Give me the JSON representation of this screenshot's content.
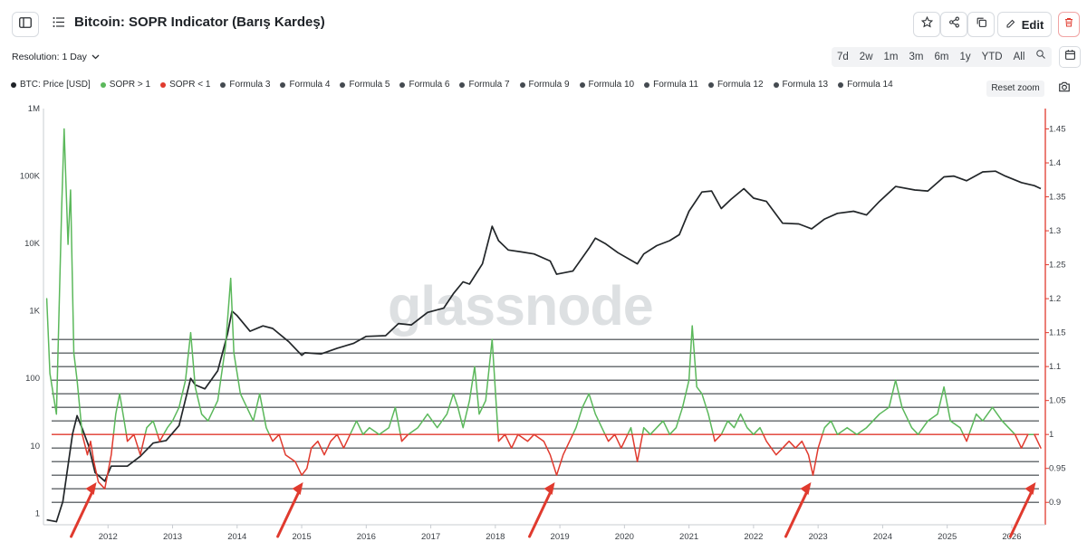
{
  "header": {
    "title": "Bitcoin: SOPR Indicator (Barış Kardeş)",
    "edit_label": "Edit"
  },
  "toolbar": {
    "resolution_label": "Resolution: 1 Day",
    "ranges": [
      "7d",
      "2w",
      "1m",
      "3m",
      "6m",
      "1y",
      "YTD",
      "All"
    ],
    "reset_zoom_label": "Reset zoom"
  },
  "legend": [
    {
      "label": "BTC: Price [USD]",
      "color": "#1f2328"
    },
    {
      "label": "SOPR > 1",
      "color": "#5bb85b"
    },
    {
      "label": "SOPR < 1",
      "color": "#e03a2e"
    },
    {
      "label": "Formula 3",
      "color": "#444a50"
    },
    {
      "label": "Formula 4",
      "color": "#444a50"
    },
    {
      "label": "Formula 5",
      "color": "#444a50"
    },
    {
      "label": "Formula 6",
      "color": "#444a50"
    },
    {
      "label": "Formula 7",
      "color": "#444a50"
    },
    {
      "label": "Formula 9",
      "color": "#444a50"
    },
    {
      "label": "Formula 10",
      "color": "#444a50"
    },
    {
      "label": "Formula 11",
      "color": "#444a50"
    },
    {
      "label": "Formula 12",
      "color": "#444a50"
    },
    {
      "label": "Formula 13",
      "color": "#444a50"
    },
    {
      "label": "Formula 14",
      "color": "#444a50"
    }
  ],
  "watermark": "glassnode",
  "colors": {
    "accent_green": "#5bb85b",
    "accent_red": "#e03a2e",
    "price": "#222629",
    "arrow": "#e03a2e"
  },
  "chart_data": {
    "type": "line",
    "x_ticks": [
      "2012",
      "2013",
      "2014",
      "2015",
      "2016",
      "2017",
      "2018",
      "2019",
      "2020",
      "2021",
      "2022",
      "2023",
      "2024",
      "2025",
      "2026"
    ],
    "y_left": {
      "scale": "log",
      "ticks": [
        "1M",
        "100K",
        "10K",
        "1K",
        "100",
        "10",
        "1"
      ],
      "values": [
        1000000,
        100000,
        10000,
        1000,
        100,
        10,
        1
      ],
      "label": ""
    },
    "y_right": {
      "scale": "linear",
      "ticks": [
        "1.45",
        "1.4",
        "1.35",
        "1.3",
        "1.25",
        "1.2",
        "1.15",
        "1.1",
        "1.05",
        "1",
        "0.95",
        "0.9"
      ],
      "values": [
        1.45,
        1.4,
        1.35,
        1.3,
        1.25,
        1.2,
        1.15,
        1.1,
        1.05,
        1,
        0.95,
        0.9
      ],
      "label": ""
    },
    "horizontal_levels": [
      1.14,
      1.12,
      1.1,
      1.08,
      1.06,
      1.04,
      1.02,
      1.0,
      0.98,
      0.96,
      0.94,
      0.92,
      0.9
    ],
    "threshold": 1.0,
    "series": [
      {
        "name": "BTC: Price [USD]",
        "axis": "left",
        "points": [
          [
            2011.05,
            0.8
          ],
          [
            2011.2,
            0.75
          ],
          [
            2011.3,
            1.5
          ],
          [
            2011.45,
            15
          ],
          [
            2011.52,
            28
          ],
          [
            2011.6,
            18
          ],
          [
            2011.7,
            10
          ],
          [
            2011.8,
            4
          ],
          [
            2011.95,
            3
          ],
          [
            2012.05,
            5
          ],
          [
            2012.3,
            5
          ],
          [
            2012.5,
            7
          ],
          [
            2012.7,
            11
          ],
          [
            2012.9,
            12
          ],
          [
            2013.1,
            20
          ],
          [
            2013.28,
            100
          ],
          [
            2013.35,
            80
          ],
          [
            2013.5,
            70
          ],
          [
            2013.7,
            130
          ],
          [
            2013.85,
            450
          ],
          [
            2013.92,
            1000
          ],
          [
            2014.0,
            850
          ],
          [
            2014.2,
            500
          ],
          [
            2014.4,
            600
          ],
          [
            2014.55,
            550
          ],
          [
            2014.8,
            350
          ],
          [
            2015.0,
            220
          ],
          [
            2015.05,
            240
          ],
          [
            2015.3,
            230
          ],
          [
            2015.55,
            280
          ],
          [
            2015.8,
            330
          ],
          [
            2016.0,
            420
          ],
          [
            2016.3,
            430
          ],
          [
            2016.5,
            650
          ],
          [
            2016.7,
            620
          ],
          [
            2016.95,
            950
          ],
          [
            2017.2,
            1100
          ],
          [
            2017.35,
            1800
          ],
          [
            2017.5,
            2700
          ],
          [
            2017.6,
            2500
          ],
          [
            2017.8,
            5000
          ],
          [
            2017.95,
            18000
          ],
          [
            2018.05,
            11000
          ],
          [
            2018.2,
            8000
          ],
          [
            2018.4,
            7500
          ],
          [
            2018.6,
            7000
          ],
          [
            2018.85,
            5500
          ],
          [
            2018.95,
            3500
          ],
          [
            2019.2,
            3900
          ],
          [
            2019.45,
            8500
          ],
          [
            2019.55,
            12000
          ],
          [
            2019.7,
            10000
          ],
          [
            2019.9,
            7300
          ],
          [
            2020.2,
            5000
          ],
          [
            2020.3,
            7000
          ],
          [
            2020.5,
            9300
          ],
          [
            2020.7,
            11000
          ],
          [
            2020.85,
            13500
          ],
          [
            2021.0,
            30000
          ],
          [
            2021.2,
            58000
          ],
          [
            2021.35,
            60000
          ],
          [
            2021.5,
            33000
          ],
          [
            2021.65,
            45000
          ],
          [
            2021.85,
            65000
          ],
          [
            2022.0,
            47000
          ],
          [
            2022.2,
            42000
          ],
          [
            2022.45,
            20000
          ],
          [
            2022.7,
            19500
          ],
          [
            2022.9,
            16500
          ],
          [
            2023.1,
            23000
          ],
          [
            2023.3,
            28000
          ],
          [
            2023.55,
            30000
          ],
          [
            2023.75,
            26500
          ],
          [
            2023.95,
            42000
          ],
          [
            2024.2,
            70000
          ],
          [
            2024.5,
            62000
          ],
          [
            2024.7,
            60000
          ],
          [
            2024.95,
            97000
          ],
          [
            2025.1,
            100000
          ],
          [
            2025.3,
            85000
          ],
          [
            2025.55,
            115000
          ],
          [
            2025.75,
            118000
          ],
          [
            2025.9,
            100000
          ],
          [
            2026.15,
            80000
          ],
          [
            2026.35,
            72000
          ],
          [
            2026.45,
            65000
          ]
        ]
      },
      {
        "name": "SOPR",
        "axis": "right",
        "points": [
          [
            2011.05,
            1.2
          ],
          [
            2011.1,
            1.09
          ],
          [
            2011.15,
            1.06
          ],
          [
            2011.2,
            1.03
          ],
          [
            2011.28,
            1.33
          ],
          [
            2011.32,
            1.45
          ],
          [
            2011.38,
            1.28
          ],
          [
            2011.42,
            1.36
          ],
          [
            2011.47,
            1.12
          ],
          [
            2011.52,
            1.08
          ],
          [
            2011.6,
            1.0
          ],
          [
            2011.68,
            0.97
          ],
          [
            2011.73,
            0.99
          ],
          [
            2011.78,
            0.96
          ],
          [
            2011.85,
            0.93
          ],
          [
            2011.95,
            0.92
          ],
          [
            2012.05,
            0.97
          ],
          [
            2012.12,
            1.03
          ],
          [
            2012.18,
            1.06
          ],
          [
            2012.25,
            1.02
          ],
          [
            2012.3,
            0.99
          ],
          [
            2012.4,
            1.0
          ],
          [
            2012.5,
            0.97
          ],
          [
            2012.6,
            1.01
          ],
          [
            2012.7,
            1.02
          ],
          [
            2012.8,
            0.99
          ],
          [
            2012.92,
            1.01
          ],
          [
            2013.0,
            1.02
          ],
          [
            2013.1,
            1.04
          ],
          [
            2013.2,
            1.08
          ],
          [
            2013.28,
            1.15
          ],
          [
            2013.35,
            1.07
          ],
          [
            2013.45,
            1.03
          ],
          [
            2013.55,
            1.02
          ],
          [
            2013.7,
            1.05
          ],
          [
            2013.82,
            1.13
          ],
          [
            2013.9,
            1.23
          ],
          [
            2013.95,
            1.12
          ],
          [
            2014.05,
            1.06
          ],
          [
            2014.15,
            1.04
          ],
          [
            2014.25,
            1.02
          ],
          [
            2014.35,
            1.06
          ],
          [
            2014.45,
            1.01
          ],
          [
            2014.55,
            0.99
          ],
          [
            2014.65,
            1.0
          ],
          [
            2014.75,
            0.97
          ],
          [
            2014.9,
            0.96
          ],
          [
            2015.0,
            0.94
          ],
          [
            2015.08,
            0.95
          ],
          [
            2015.15,
            0.98
          ],
          [
            2015.25,
            0.99
          ],
          [
            2015.35,
            0.97
          ],
          [
            2015.45,
            0.99
          ],
          [
            2015.55,
            1.0
          ],
          [
            2015.65,
            0.98
          ],
          [
            2015.75,
            1.0
          ],
          [
            2015.85,
            1.02
          ],
          [
            2015.95,
            1.0
          ],
          [
            2016.05,
            1.01
          ],
          [
            2016.2,
            1.0
          ],
          [
            2016.35,
            1.01
          ],
          [
            2016.45,
            1.04
          ],
          [
            2016.55,
            0.99
          ],
          [
            2016.65,
            1.0
          ],
          [
            2016.8,
            1.01
          ],
          [
            2016.95,
            1.03
          ],
          [
            2017.1,
            1.01
          ],
          [
            2017.25,
            1.03
          ],
          [
            2017.35,
            1.06
          ],
          [
            2017.42,
            1.04
          ],
          [
            2017.5,
            1.01
          ],
          [
            2017.6,
            1.05
          ],
          [
            2017.68,
            1.1
          ],
          [
            2017.75,
            1.03
          ],
          [
            2017.85,
            1.05
          ],
          [
            2017.95,
            1.14
          ],
          [
            2018.05,
            0.99
          ],
          [
            2018.15,
            1.0
          ],
          [
            2018.25,
            0.98
          ],
          [
            2018.35,
            1.0
          ],
          [
            2018.5,
            0.99
          ],
          [
            2018.6,
            1.0
          ],
          [
            2018.75,
            0.99
          ],
          [
            2018.85,
            0.97
          ],
          [
            2018.95,
            0.94
          ],
          [
            2019.05,
            0.97
          ],
          [
            2019.15,
            0.99
          ],
          [
            2019.25,
            1.01
          ],
          [
            2019.35,
            1.04
          ],
          [
            2019.45,
            1.06
          ],
          [
            2019.55,
            1.03
          ],
          [
            2019.65,
            1.01
          ],
          [
            2019.75,
            0.99
          ],
          [
            2019.85,
            1.0
          ],
          [
            2019.95,
            0.98
          ],
          [
            2020.1,
            1.01
          ],
          [
            2020.2,
            0.96
          ],
          [
            2020.3,
            1.01
          ],
          [
            2020.4,
            1.0
          ],
          [
            2020.5,
            1.01
          ],
          [
            2020.6,
            1.02
          ],
          [
            2020.7,
            1.0
          ],
          [
            2020.8,
            1.01
          ],
          [
            2020.9,
            1.04
          ],
          [
            2021.0,
            1.08
          ],
          [
            2021.05,
            1.16
          ],
          [
            2021.12,
            1.07
          ],
          [
            2021.2,
            1.06
          ],
          [
            2021.3,
            1.03
          ],
          [
            2021.4,
            0.99
          ],
          [
            2021.5,
            1.0
          ],
          [
            2021.6,
            1.02
          ],
          [
            2021.7,
            1.01
          ],
          [
            2021.8,
            1.03
          ],
          [
            2021.9,
            1.01
          ],
          [
            2022.0,
            1.0
          ],
          [
            2022.1,
            1.01
          ],
          [
            2022.2,
            0.99
          ],
          [
            2022.35,
            0.97
          ],
          [
            2022.45,
            0.98
          ],
          [
            2022.55,
            0.99
          ],
          [
            2022.65,
            0.98
          ],
          [
            2022.75,
            0.99
          ],
          [
            2022.85,
            0.97
          ],
          [
            2022.92,
            0.94
          ],
          [
            2023.0,
            0.98
          ],
          [
            2023.1,
            1.01
          ],
          [
            2023.2,
            1.02
          ],
          [
            2023.3,
            1.0
          ],
          [
            2023.45,
            1.01
          ],
          [
            2023.6,
            1.0
          ],
          [
            2023.75,
            1.01
          ],
          [
            2023.85,
            1.02
          ],
          [
            2023.95,
            1.03
          ],
          [
            2024.1,
            1.04
          ],
          [
            2024.2,
            1.08
          ],
          [
            2024.3,
            1.04
          ],
          [
            2024.45,
            1.01
          ],
          [
            2024.55,
            1.0
          ],
          [
            2024.7,
            1.02
          ],
          [
            2024.85,
            1.03
          ],
          [
            2024.95,
            1.07
          ],
          [
            2025.05,
            1.02
          ],
          [
            2025.2,
            1.01
          ],
          [
            2025.3,
            0.99
          ],
          [
            2025.45,
            1.03
          ],
          [
            2025.55,
            1.02
          ],
          [
            2025.7,
            1.04
          ],
          [
            2025.85,
            1.02
          ],
          [
            2025.95,
            1.01
          ],
          [
            2026.05,
            1.0
          ],
          [
            2026.15,
            0.98
          ],
          [
            2026.25,
            1.0
          ],
          [
            2026.35,
            1.0
          ],
          [
            2026.45,
            0.98
          ]
        ]
      }
    ],
    "annotations": [
      {
        "type": "arrow",
        "at_x": 2011.85
      },
      {
        "type": "arrow",
        "at_x": 2015.05
      },
      {
        "type": "arrow",
        "at_x": 2018.95
      },
      {
        "type": "arrow",
        "at_x": 2022.92
      },
      {
        "type": "arrow",
        "at_x": 2026.4
      }
    ],
    "legend_placement": "top-left",
    "grid": false
  }
}
